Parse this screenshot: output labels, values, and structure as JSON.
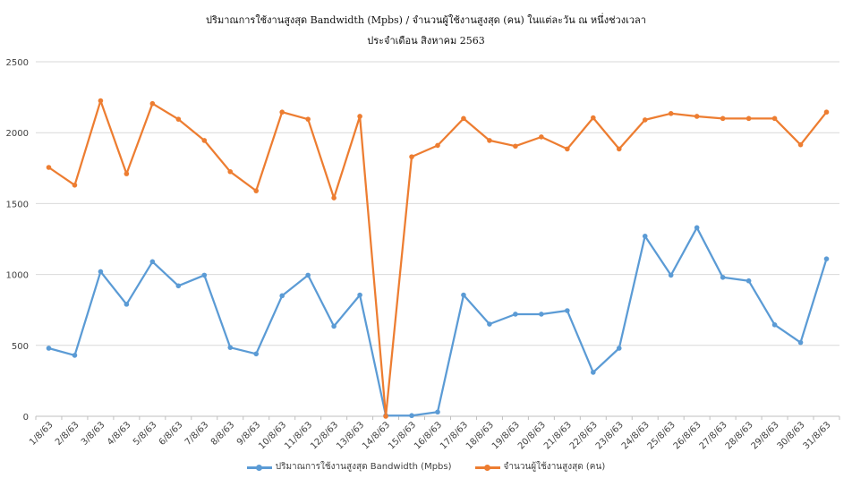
{
  "chart_data": {
    "type": "line",
    "title": "ปริมาณการใช้งานสูงสุด Bandwidth (Mpbs) / จำนวนผู้ใช้งานสูงสุด (คน) ในแต่ละวัน ณ หนึ่งช่วงเวลา",
    "subtitle": "ประจำเดือน สิงหาคม 2563",
    "xlabel": "",
    "ylabel": "",
    "ylim": [
      0,
      2500
    ],
    "yticks": [
      0,
      500,
      1000,
      1500,
      2000,
      2500
    ],
    "grid": true,
    "legend_position": "bottom",
    "categories": [
      "1/8/63",
      "2/8/63",
      "3/8/63",
      "4/8/63",
      "5/8/63",
      "6/8/63",
      "7/8/63",
      "8/8/63",
      "9/8/63",
      "10/8/63",
      "11/8/63",
      "12/8/63",
      "13/8/63",
      "14/8/63",
      "15/8/63",
      "16/8/63",
      "17/8/63",
      "18/8/63",
      "19/8/63",
      "20/8/63",
      "21/8/63",
      "22/8/63",
      "23/8/63",
      "24/8/63",
      "25/8/63",
      "26/8/63",
      "27/8/63",
      "28/8/63",
      "29/8/63",
      "30/8/63",
      "31/8/63"
    ],
    "series": [
      {
        "name": "ปริมาณการใช้งานสูงสุด Bandwidth (Mpbs)",
        "color": "#5b9bd5",
        "values": [
          480,
          430,
          1020,
          790,
          1090,
          920,
          995,
          485,
          440,
          850,
          995,
          635,
          855,
          5,
          5,
          30,
          855,
          650,
          720,
          720,
          745,
          310,
          480,
          1270,
          995,
          1330,
          980,
          955,
          645,
          520,
          1110
        ]
      },
      {
        "name": "จำนวนผู้ใช้งานสูงสุด (คน)",
        "color": "#ed7d31",
        "values": [
          1755,
          1630,
          2225,
          1710,
          2205,
          2095,
          1945,
          1725,
          1590,
          2145,
          2095,
          1540,
          2115,
          0,
          1830,
          1910,
          2100,
          1945,
          1905,
          1970,
          1885,
          2105,
          1885,
          2090,
          2135,
          2115,
          2100,
          2100,
          2100,
          1915,
          2145
        ]
      }
    ]
  }
}
